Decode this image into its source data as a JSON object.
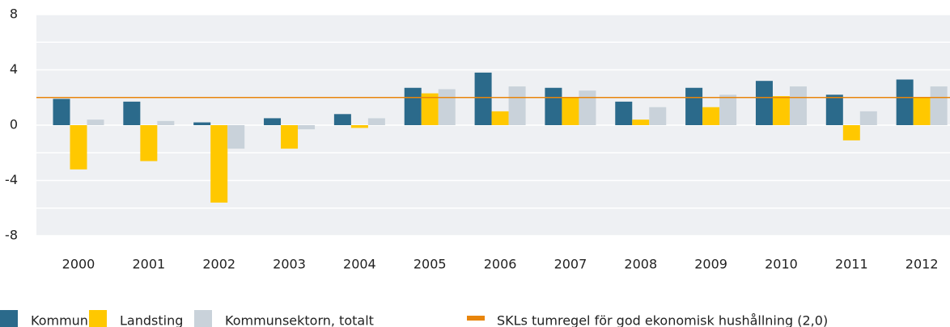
{
  "chart_data": {
    "type": "bar",
    "categories": [
      "2000",
      "2001",
      "2002",
      "2003",
      "2004",
      "2005",
      "2006",
      "2007",
      "2008",
      "2009",
      "2010",
      "2011",
      "2012"
    ],
    "series": [
      {
        "name": "Kommuner",
        "color": "#2b6a8b",
        "values": [
          1.9,
          1.7,
          0.2,
          0.5,
          0.8,
          2.7,
          3.8,
          2.7,
          1.7,
          2.7,
          3.2,
          2.2,
          3.3
        ]
      },
      {
        "name": "Landsting",
        "color": "#ffc800",
        "values": [
          -3.2,
          -2.6,
          -5.6,
          -1.7,
          -0.2,
          2.3,
          1.0,
          2.0,
          0.4,
          1.3,
          2.1,
          -1.1,
          2.0
        ]
      },
      {
        "name": "Kommunsektorn, totalt",
        "color": "#c9d2da",
        "values": [
          0.4,
          0.3,
          -1.7,
          -0.3,
          0.5,
          2.6,
          2.8,
          2.5,
          1.3,
          2.2,
          2.8,
          1.0,
          2.8
        ]
      }
    ],
    "reference_line": {
      "name": "SKLs tumregel för god ekonomisk hushållning (2,0)",
      "value": 2.0,
      "color": "#e8850c"
    },
    "ylim": [
      -8,
      8
    ],
    "yticks": [
      -8,
      -4,
      0,
      4,
      8
    ],
    "minor_yticks": [
      -6,
      -2,
      2,
      6
    ],
    "grid": true,
    "legend": "bottom"
  }
}
